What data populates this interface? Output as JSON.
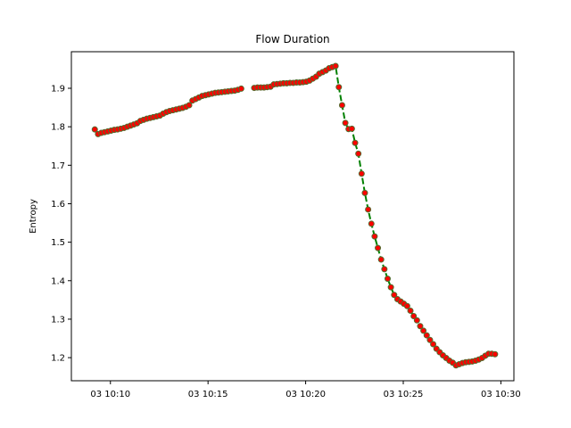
{
  "chart_data": {
    "type": "line",
    "title": "Flow Duration",
    "xlabel": "",
    "ylabel": "Entropy",
    "x_unit": "time",
    "xlim": [
      "03 10:08:00",
      "03 10:30:40"
    ],
    "ylim": [
      1.14,
      1.995
    ],
    "x_ticks": [
      {
        "label": "03 10:10",
        "t": "03 10:10:00"
      },
      {
        "label": "03 10:15",
        "t": "03 10:15:00"
      },
      {
        "label": "03 10:20",
        "t": "03 10:20:00"
      },
      {
        "label": "03 10:25",
        "t": "03 10:25:00"
      },
      {
        "label": "03 10:30",
        "t": "03 10:30:00"
      }
    ],
    "y_ticks": [
      1.2,
      1.3,
      1.4,
      1.5,
      1.6,
      1.7,
      1.8,
      1.9
    ],
    "y_tick_labels": [
      "1.2",
      "1.3",
      "1.4",
      "1.5",
      "1.6",
      "1.7",
      "1.8",
      "1.9"
    ],
    "grid": false,
    "legend": "none",
    "colors": {
      "line": "#008000",
      "marker": "#ff0000",
      "marker_edge": "#556b2f",
      "axis": "#000000"
    },
    "series": [
      {
        "segments": [
          {
            "x": [
              "03 10:09:12",
              "03 10:09:22",
              "03 10:09:32",
              "03 10:09:42",
              "03 10:09:52",
              "03 10:10:02",
              "03 10:10:12",
              "03 10:10:22",
              "03 10:10:32",
              "03 10:10:42",
              "03 10:10:52",
              "03 10:11:02",
              "03 10:11:12",
              "03 10:11:22",
              "03 10:11:32",
              "03 10:11:42",
              "03 10:11:52",
              "03 10:12:02",
              "03 10:12:12",
              "03 10:12:22",
              "03 10:12:32",
              "03 10:12:42",
              "03 10:12:52",
              "03 10:13:02",
              "03 10:13:12",
              "03 10:13:22",
              "03 10:13:32",
              "03 10:13:42",
              "03 10:13:52",
              "03 10:14:02",
              "03 10:14:12",
              "03 10:14:22",
              "03 10:14:32",
              "03 10:14:42",
              "03 10:14:52",
              "03 10:15:02",
              "03 10:15:12",
              "03 10:15:22",
              "03 10:15:32",
              "03 10:15:42",
              "03 10:15:52",
              "03 10:16:02",
              "03 10:16:12",
              "03 10:16:22",
              "03 10:16:32",
              "03 10:16:42"
            ],
            "y": [
              1.793,
              1.781,
              1.784,
              1.786,
              1.788,
              1.79,
              1.792,
              1.793,
              1.795,
              1.797,
              1.8,
              1.803,
              1.806,
              1.809,
              1.815,
              1.818,
              1.821,
              1.823,
              1.825,
              1.827,
              1.829,
              1.834,
              1.838,
              1.841,
              1.843,
              1.845,
              1.847,
              1.849,
              1.852,
              1.856,
              1.868,
              1.872,
              1.876,
              1.88,
              1.882,
              1.884,
              1.886,
              1.888,
              1.889,
              1.89,
              1.891,
              1.892,
              1.893,
              1.894,
              1.896,
              1.899
            ]
          },
          {
            "x": [
              "03 10:17:22",
              "03 10:17:32",
              "03 10:17:42",
              "03 10:17:52",
              "03 10:18:02",
              "03 10:18:12",
              "03 10:18:22",
              "03 10:18:32",
              "03 10:18:42",
              "03 10:18:52",
              "03 10:19:02",
              "03 10:19:12",
              "03 10:19:22",
              "03 10:19:32",
              "03 10:19:42",
              "03 10:19:52",
              "03 10:20:02",
              "03 10:20:12",
              "03 10:20:22",
              "03 10:20:32",
              "03 10:20:42",
              "03 10:20:52",
              "03 10:21:02",
              "03 10:21:12",
              "03 10:21:22",
              "03 10:21:32",
              "03 10:21:42",
              "03 10:21:52",
              "03 10:22:02",
              "03 10:22:12",
              "03 10:22:22",
              "03 10:22:32",
              "03 10:22:42",
              "03 10:22:52",
              "03 10:23:02",
              "03 10:23:12",
              "03 10:23:22",
              "03 10:23:32",
              "03 10:23:42",
              "03 10:23:52",
              "03 10:24:02",
              "03 10:24:12",
              "03 10:24:22",
              "03 10:24:32",
              "03 10:24:42",
              "03 10:24:52",
              "03 10:25:02",
              "03 10:25:12",
              "03 10:25:22",
              "03 10:25:32",
              "03 10:25:42",
              "03 10:25:52",
              "03 10:26:02",
              "03 10:26:12",
              "03 10:26:22",
              "03 10:26:32",
              "03 10:26:42",
              "03 10:26:52",
              "03 10:27:02",
              "03 10:27:12",
              "03 10:27:22",
              "03 10:27:32",
              "03 10:27:42",
              "03 10:27:52",
              "03 10:28:02",
              "03 10:28:12",
              "03 10:28:22",
              "03 10:28:32",
              "03 10:28:42",
              "03 10:28:52",
              "03 10:29:02",
              "03 10:29:12",
              "03 10:29:22",
              "03 10:29:32",
              "03 10:29:42"
            ],
            "y": [
              1.901,
              1.902,
              1.902,
              1.902,
              1.903,
              1.904,
              1.91,
              1.911,
              1.912,
              1.913,
              1.913,
              1.914,
              1.914,
              1.915,
              1.915,
              1.916,
              1.917,
              1.92,
              1.925,
              1.93,
              1.938,
              1.942,
              1.946,
              1.952,
              1.955,
              1.958,
              1.903,
              1.856,
              1.81,
              1.794,
              1.795,
              1.758,
              1.73,
              1.678,
              1.628,
              1.585,
              1.548,
              1.515,
              1.485,
              1.455,
              1.43,
              1.405,
              1.383,
              1.363,
              1.352,
              1.346,
              1.34,
              1.334,
              1.322,
              1.308,
              1.297,
              1.282,
              1.27,
              1.258,
              1.246,
              1.235,
              1.223,
              1.214,
              1.206,
              1.199,
              1.192,
              1.187,
              1.18,
              1.183,
              1.186,
              1.188,
              1.189,
              1.19,
              1.192,
              1.195,
              1.199,
              1.205,
              1.21,
              1.21,
              1.209
            ]
          }
        ]
      }
    ]
  }
}
